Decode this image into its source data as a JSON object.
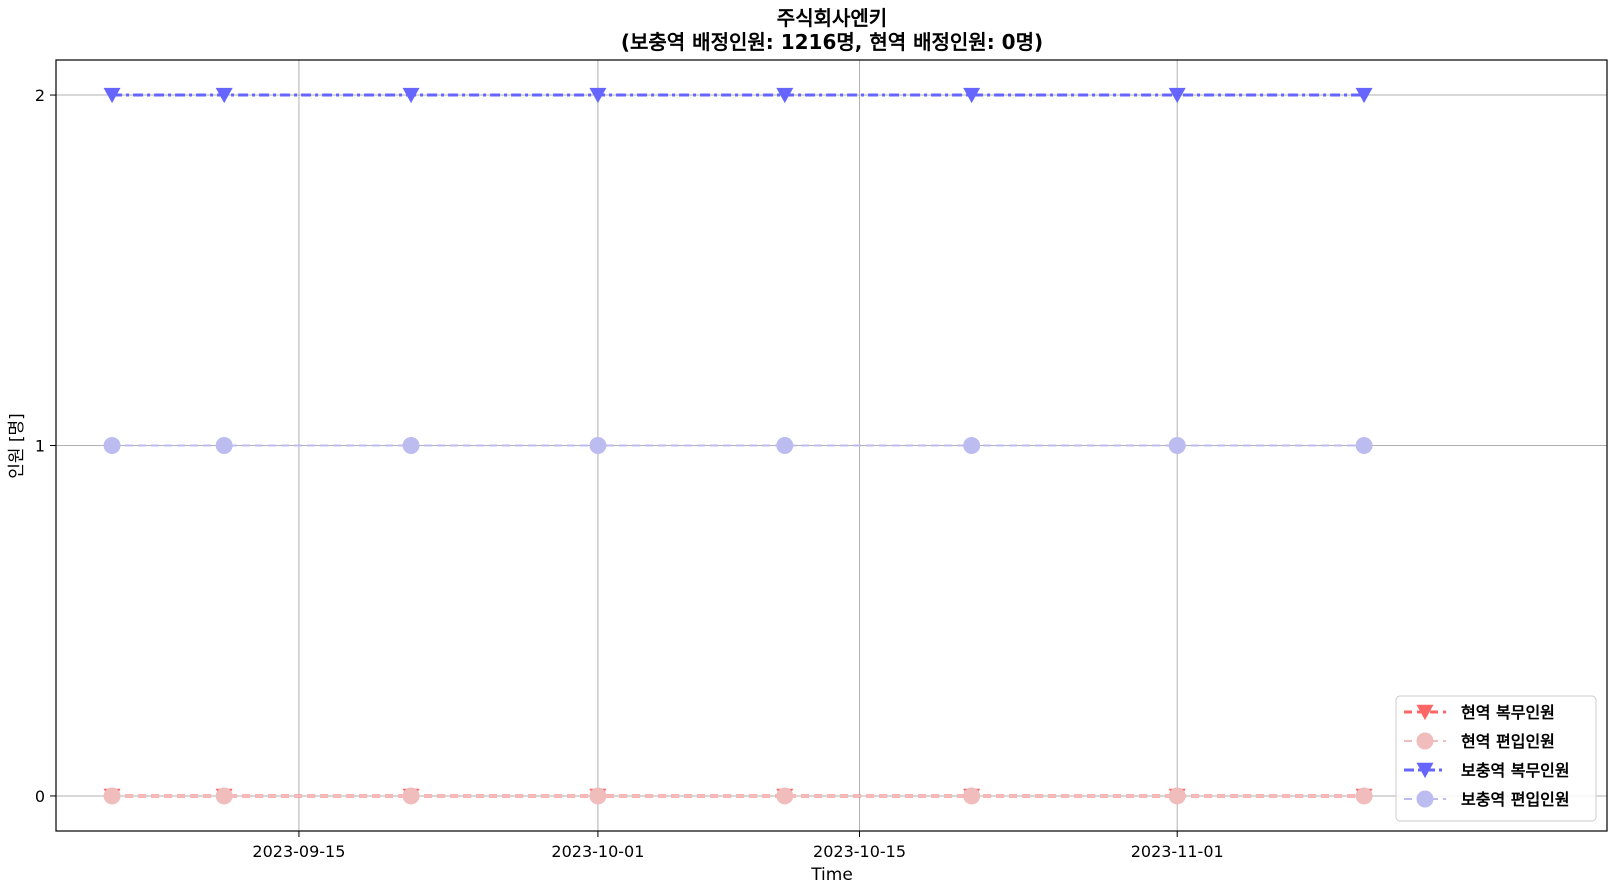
{
  "chart_data": {
    "type": "line",
    "title": "주식회사엔키",
    "subtitle": "(보충역 배정인원: 1216명, 현역 배정인원: 0명)",
    "xlabel": "Time",
    "ylabel": "인원 [명]",
    "x": [
      "2023-09-05",
      "2023-09-11",
      "2023-09-21",
      "2023-10-01",
      "2023-10-11",
      "2023-10-21",
      "2023-11-01",
      "2023-11-11"
    ],
    "xlim": [
      "2023-09-02",
      "2023-11-24"
    ],
    "ylim": [
      -0.1,
      2.1
    ],
    "xticks": [
      "2023-09-15",
      "2023-10-01",
      "2023-10-15",
      "2023-11-01"
    ],
    "yticks": [
      0,
      1,
      2
    ],
    "grid": true,
    "legend_position": "lower-right",
    "series": [
      {
        "name": "현역 복무인원",
        "values": [
          0,
          0,
          0,
          0,
          0,
          0,
          0,
          0
        ],
        "color": "#ff6666",
        "marker": "triangle-down",
        "dash": "8,5",
        "width": 3,
        "size": 17
      },
      {
        "name": "현역 편입인원",
        "values": [
          0,
          0,
          0,
          0,
          0,
          0,
          0,
          0
        ],
        "color": "#f0bcbc",
        "marker": "circle",
        "dash": "8,5",
        "width": 2,
        "size": 17
      },
      {
        "name": "보충역 복무인원",
        "values": [
          2,
          2,
          2,
          2,
          2,
          2,
          2,
          2
        ],
        "color": "#6666ff",
        "marker": "triangle-down",
        "dash": "10,4,3,4",
        "width": 3,
        "size": 17
      },
      {
        "name": "보충역 편입인원",
        "values": [
          1,
          1,
          1,
          1,
          1,
          1,
          1,
          1
        ],
        "color": "#bcbcf0",
        "marker": "circle",
        "dash": "8,5",
        "width": 2,
        "size": 17
      }
    ]
  }
}
